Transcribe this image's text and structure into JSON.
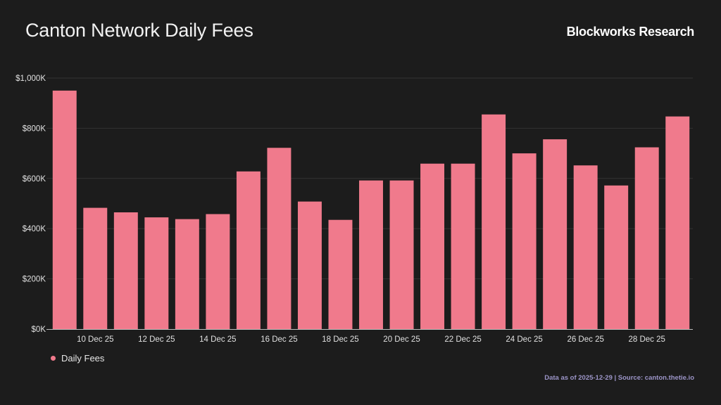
{
  "header": {
    "title": "Canton Network Daily Fees",
    "brand": "Blockworks Research"
  },
  "footer": {
    "note": "Data as of 2025-12-29 | Source: canton.thetie.io"
  },
  "colors": {
    "background": "#1c1c1c",
    "bar": "#f07a8c",
    "grid": "#333333",
    "footer_text": "#9c95c8"
  },
  "chart_data": {
    "type": "bar",
    "ylim": [
      0,
      1000000
    ],
    "yticks": [
      0,
      200000,
      400000,
      600000,
      800000,
      1000000
    ],
    "ytick_labels": [
      "$0K",
      "$200K",
      "$400K",
      "$600K",
      "$800K",
      "$1,000K"
    ],
    "grid": true,
    "legend_position": "bottom-left",
    "x_tick_labels": [
      "10 Dec 25",
      "12 Dec 25",
      "14 Dec 25",
      "16 Dec 25",
      "18 Dec 25",
      "20 Dec 25",
      "22 Dec 25",
      "24 Dec 25",
      "26 Dec 25",
      "28 Dec 25"
    ],
    "x": [
      "2025-12-09",
      "2025-12-10",
      "2025-12-11",
      "2025-12-12",
      "2025-12-13",
      "2025-12-14",
      "2025-12-15",
      "2025-12-16",
      "2025-12-17",
      "2025-12-18",
      "2025-12-19",
      "2025-12-20",
      "2025-12-21",
      "2025-12-22",
      "2025-12-23",
      "2025-12-24",
      "2025-12-25",
      "2025-12-26",
      "2025-12-27",
      "2025-12-28",
      "2025-12-29"
    ],
    "series": [
      {
        "name": "Daily Fees",
        "values": [
          950000,
          483000,
          465000,
          445000,
          438000,
          458000,
          628000,
          722000,
          508000,
          435000,
          592000,
          592000,
          659000,
          659000,
          855000,
          700000,
          756000,
          652000,
          572000,
          724000,
          847000
        ]
      }
    ]
  }
}
